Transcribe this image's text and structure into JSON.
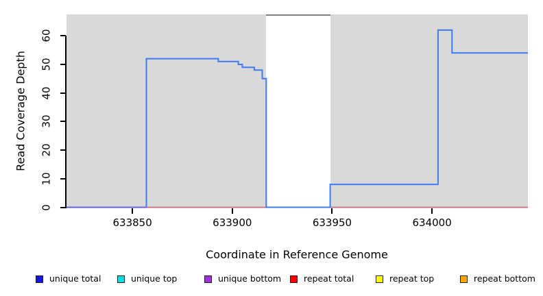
{
  "chart_data": {
    "type": "line",
    "subtype": "step-coverage-plot",
    "title": "",
    "xlabel": "Coordinate in Reference Genome",
    "ylabel": "Read Coverage Depth",
    "xlim": [
      633817,
      634048
    ],
    "ylim": [
      0,
      67.5
    ],
    "x_ticks": [
      "633850",
      "633900",
      "633950",
      "634000"
    ],
    "x_tick_values": [
      633850,
      633900,
      633950,
      634000
    ],
    "y_ticks": [
      "0",
      "10",
      "20",
      "30",
      "40",
      "50",
      "60"
    ],
    "y_tick_values": [
      0,
      10,
      20,
      30,
      40,
      50,
      60
    ],
    "grid": false,
    "panel_background": "#d9d9d9",
    "masked_region": {
      "x_start": 633917,
      "x_end": 633949,
      "fill": "#ffffff",
      "border_top": "#7f7f7f"
    },
    "series": [
      {
        "name": "repeat total",
        "color": "#d85f7d",
        "width": 1.6,
        "points": [
          [
            633857,
            0
          ],
          [
            634048,
            0
          ]
        ]
      },
      {
        "name": "unique total",
        "color": "#3d7bf5",
        "width": 2,
        "points": [
          [
            633857,
            0
          ],
          [
            633857,
            52
          ],
          [
            633893,
            52
          ],
          [
            633893,
            51
          ],
          [
            633903,
            51
          ],
          [
            633903,
            50
          ],
          [
            633905,
            50
          ],
          [
            633905,
            49
          ],
          [
            633911,
            49
          ],
          [
            633911,
            48
          ],
          [
            633915,
            48
          ],
          [
            633915,
            45
          ],
          [
            633917,
            45
          ],
          [
            633917,
            0
          ],
          [
            633949,
            0
          ],
          [
            633949,
            8
          ],
          [
            634003,
            8
          ],
          [
            634003,
            62
          ],
          [
            634010,
            62
          ],
          [
            634010,
            54
          ],
          [
            634048,
            54
          ]
        ]
      },
      {
        "name": "unique bottom",
        "color": "#6f66e0",
        "width": 2,
        "points": [
          [
            633817,
            0
          ],
          [
            633857,
            0
          ]
        ]
      }
    ],
    "legend_position": "bottom",
    "legend": [
      {
        "label": "unique total",
        "color": "#1414e6"
      },
      {
        "label": "unique top",
        "color": "#00e0e6"
      },
      {
        "label": "unique bottom",
        "color": "#a02fe0"
      },
      {
        "label": "repeat total",
        "color": "#ff0000"
      },
      {
        "label": "repeat top",
        "color": "#ffff00"
      },
      {
        "label": "repeat bottom",
        "color": "#ffa500"
      }
    ]
  }
}
